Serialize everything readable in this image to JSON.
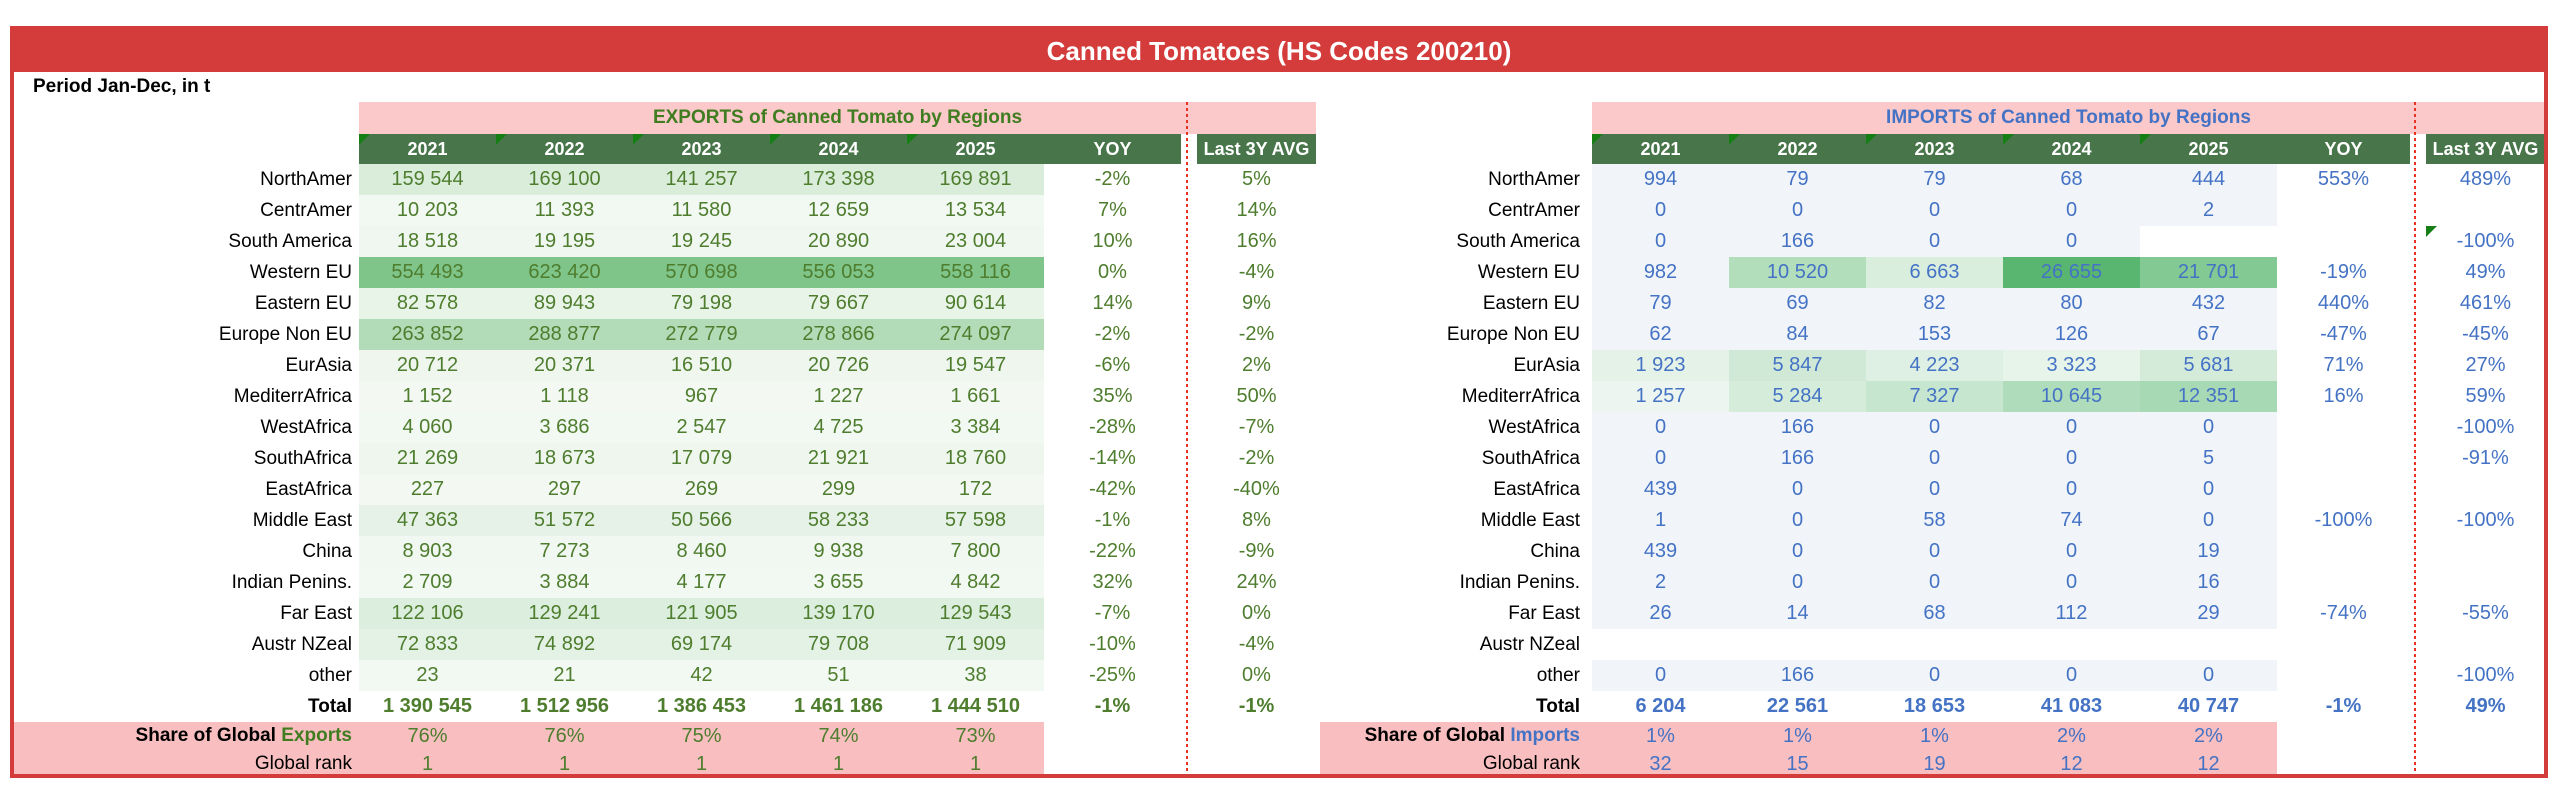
{
  "title": "Canned Tomatoes (HS Codes 200210)",
  "period_label": "Period Jan-Dec, in t",
  "exports": {
    "header": "EXPORTS of Canned Tomato by Regions",
    "years": [
      "2021",
      "2022",
      "2023",
      "2024",
      "2025"
    ],
    "yoy_label": "YOY",
    "avg_label": "Last 3Y AVG",
    "colors": {
      "text": "#4e7d2e",
      "accent": "#3f7d20",
      "default_bg": "#ffffff"
    },
    "rows": [
      {
        "label": "NorthAmer",
        "values": [
          "159 544",
          "169 100",
          "141 257",
          "173 398",
          "169 891"
        ],
        "yoy": "-2%",
        "avg": "5%",
        "bg": "#d9edda"
      },
      {
        "label": "CentrAmer",
        "values": [
          "10 203",
          "11 393",
          "11 580",
          "12 659",
          "13 534"
        ],
        "yoy": "7%",
        "avg": "14%",
        "bg": "#f2f8f2"
      },
      {
        "label": "South America",
        "values": [
          "18 518",
          "19 195",
          "19 245",
          "20 890",
          "23 004"
        ],
        "yoy": "10%",
        "avg": "16%",
        "bg": "#f0f7f0"
      },
      {
        "label": "Western EU",
        "values": [
          "554 493",
          "623 420",
          "570 698",
          "556 053",
          "558 116"
        ],
        "yoy": "0%",
        "avg": "-4%",
        "bg": "#7fc589"
      },
      {
        "label": "Eastern EU",
        "values": [
          "82 578",
          "89 943",
          "79 198",
          "79 667",
          "90 614"
        ],
        "yoy": "14%",
        "avg": "9%",
        "bg": "#e9f4e9"
      },
      {
        "label": "Europe Non EU",
        "values": [
          "263 852",
          "288 877",
          "272 779",
          "278 866",
          "274 097"
        ],
        "yoy": "-2%",
        "avg": "-2%",
        "bg": "#b2dcb8"
      },
      {
        "label": "EurAsia",
        "values": [
          "20 712",
          "20 371",
          "16 510",
          "20 726",
          "19 547"
        ],
        "yoy": "-6%",
        "avg": "2%",
        "bg": "#eef6ee"
      },
      {
        "label": "MediterrAfrica",
        "values": [
          "1 152",
          "1 118",
          "967",
          "1 227",
          "1 661"
        ],
        "yoy": "35%",
        "avg": "50%",
        "bg": "#f3f8f3"
      },
      {
        "label": "WestAfrica",
        "values": [
          "4 060",
          "3 686",
          "2 547",
          "4 725",
          "3 384"
        ],
        "yoy": "-28%",
        "avg": "-7%",
        "bg": "#f2f8f2"
      },
      {
        "label": "SouthAfrica",
        "values": [
          "21 269",
          "18 673",
          "17 079",
          "21 921",
          "18 760"
        ],
        "yoy": "-14%",
        "avg": "-2%",
        "bg": "#eef6ee"
      },
      {
        "label": "EastAfrica",
        "values": [
          "227",
          "297",
          "269",
          "299",
          "172"
        ],
        "yoy": "-42%",
        "avg": "-40%",
        "bg": "#f3f8f3"
      },
      {
        "label": "Middle East",
        "values": [
          "47 363",
          "51 572",
          "50 566",
          "58 233",
          "57 598"
        ],
        "yoy": "-1%",
        "avg": "8%",
        "bg": "#e6f2e7"
      },
      {
        "label": "China",
        "values": [
          "8 903",
          "7 273",
          "8 460",
          "9 938",
          "7 800"
        ],
        "yoy": "-22%",
        "avg": "-9%",
        "bg": "#f1f7f1"
      },
      {
        "label": "Indian Penins.",
        "values": [
          "2 709",
          "3 884",
          "4 177",
          "3 655",
          "4 842"
        ],
        "yoy": "32%",
        "avg": "24%",
        "bg": "#f2f8f2"
      },
      {
        "label": "Far East",
        "values": [
          "122 106",
          "129 241",
          "121 905",
          "139 170",
          "129 543"
        ],
        "yoy": "-7%",
        "avg": "0%",
        "bg": "#dceede"
      },
      {
        "label": "Austr NZeal",
        "values": [
          "72 833",
          "74 892",
          "69 174",
          "79 708",
          "71 909"
        ],
        "yoy": "-10%",
        "avg": "-4%",
        "bg": "#e4f1e5"
      },
      {
        "label": "other",
        "values": [
          "23",
          "21",
          "42",
          "51",
          "38"
        ],
        "yoy": "-25%",
        "avg": "0%",
        "bg": "#f2f8f2"
      },
      {
        "label": "Total",
        "values": [
          "1 390 545",
          "1 512 956",
          "1 386 453",
          "1 461 186",
          "1 444 510"
        ],
        "yoy": "-1%",
        "avg": "-1%",
        "bg": "#ffffff",
        "bold": true
      }
    ],
    "share": {
      "label_prefix": "Share of Global ",
      "label_accent": "Exports",
      "values": [
        "76%",
        "76%",
        "75%",
        "74%",
        "73%"
      ]
    },
    "rank": {
      "label": "Global rank",
      "values": [
        "1",
        "1",
        "1",
        "1",
        "1"
      ]
    }
  },
  "imports": {
    "header": "IMPORTS of Canned Tomato by Regions",
    "years": [
      "2021",
      "2022",
      "2023",
      "2024",
      "2025"
    ],
    "yoy_label": "YOY",
    "avg_label": "Last 3Y AVG",
    "colors": {
      "text": "#4472c4",
      "accent": "#4472c4",
      "default_bg": "#f1f5fa"
    },
    "rows": [
      {
        "label": "NorthAmer",
        "values": [
          "994",
          "79",
          "79",
          "68",
          "444"
        ],
        "yoy": "553%",
        "avg": "489%"
      },
      {
        "label": "CentrAmer",
        "values": [
          "0",
          "0",
          "0",
          "0",
          "2"
        ],
        "yoy": "",
        "avg": ""
      },
      {
        "label": "South America",
        "values": [
          "0",
          "166",
          "0",
          "0",
          ""
        ],
        "yoy": "",
        "avg": "-100%",
        "bg": [
          "#f1f5fa",
          "#f1f5fa",
          "#f1f5fa",
          "#f1f5fa",
          "#ffffff"
        ],
        "marker_avg": true
      },
      {
        "label": "Western EU",
        "values": [
          "982",
          "10 520",
          "6 663",
          "26 655",
          "21 701"
        ],
        "yoy": "-19%",
        "avg": "49%",
        "bg": [
          "#f1f5fa",
          "#b3debc",
          "#daeede",
          "#58b671",
          "#82c993"
        ]
      },
      {
        "label": "Eastern EU",
        "values": [
          "79",
          "69",
          "82",
          "80",
          "432"
        ],
        "yoy": "440%",
        "avg": "461%"
      },
      {
        "label": "Europe Non EU",
        "values": [
          "62",
          "84",
          "153",
          "126",
          "67"
        ],
        "yoy": "-47%",
        "avg": "-45%"
      },
      {
        "label": "EurAsia",
        "values": [
          "1 923",
          "5 847",
          "4 223",
          "3 323",
          "5 681"
        ],
        "yoy": "71%",
        "avg": "27%",
        "bg": [
          "#e4f2e8",
          "#d0e9d7",
          "#def0e3",
          "#e7f4ea",
          "#d4ebda"
        ]
      },
      {
        "label": "MediterrAfrica",
        "values": [
          "1 257",
          "5 284",
          "7 327",
          "10 645",
          "12 351"
        ],
        "yoy": "16%",
        "avg": "59%",
        "bg": [
          "#ecf5ef",
          "#d5ecdb",
          "#c6e6cf",
          "#afdcbb",
          "#a6d9b4"
        ]
      },
      {
        "label": "WestAfrica",
        "values": [
          "0",
          "166",
          "0",
          "0",
          "0"
        ],
        "yoy": "",
        "avg": "-100%"
      },
      {
        "label": "SouthAfrica",
        "values": [
          "0",
          "166",
          "0",
          "0",
          "5"
        ],
        "yoy": "",
        "avg": "-91%"
      },
      {
        "label": "EastAfrica",
        "values": [
          "439",
          "0",
          "0",
          "0",
          "0"
        ],
        "yoy": "",
        "avg": ""
      },
      {
        "label": "Middle East",
        "values": [
          "1",
          "0",
          "58",
          "74",
          "0"
        ],
        "yoy": "-100%",
        "avg": "-100%"
      },
      {
        "label": "China",
        "values": [
          "439",
          "0",
          "0",
          "0",
          "19"
        ],
        "yoy": "",
        "avg": ""
      },
      {
        "label": "Indian Penins.",
        "values": [
          "2",
          "0",
          "0",
          "0",
          "16"
        ],
        "yoy": "",
        "avg": ""
      },
      {
        "label": "Far East",
        "values": [
          "26",
          "14",
          "68",
          "112",
          "29"
        ],
        "yoy": "-74%",
        "avg": "-55%"
      },
      {
        "label": "Austr NZeal",
        "values": [
          "",
          "",
          "",
          "",
          ""
        ],
        "yoy": "",
        "avg": "",
        "bg": "#ffffff"
      },
      {
        "label": "other",
        "values": [
          "0",
          "166",
          "0",
          "0",
          "0"
        ],
        "yoy": "",
        "avg": "-100%"
      },
      {
        "label": "Total",
        "values": [
          "6 204",
          "22 561",
          "18 653",
          "41 083",
          "40 747"
        ],
        "yoy": "-1%",
        "avg": "49%",
        "bg": "#ffffff",
        "bold": true
      }
    ],
    "share": {
      "label_prefix": "Share of Global ",
      "label_accent": "Imports",
      "values": [
        "1%",
        "1%",
        "1%",
        "2%",
        "2%"
      ]
    },
    "rank": {
      "label": "Global rank",
      "values": [
        "32",
        "15",
        "19",
        "12",
        "12"
      ]
    }
  }
}
